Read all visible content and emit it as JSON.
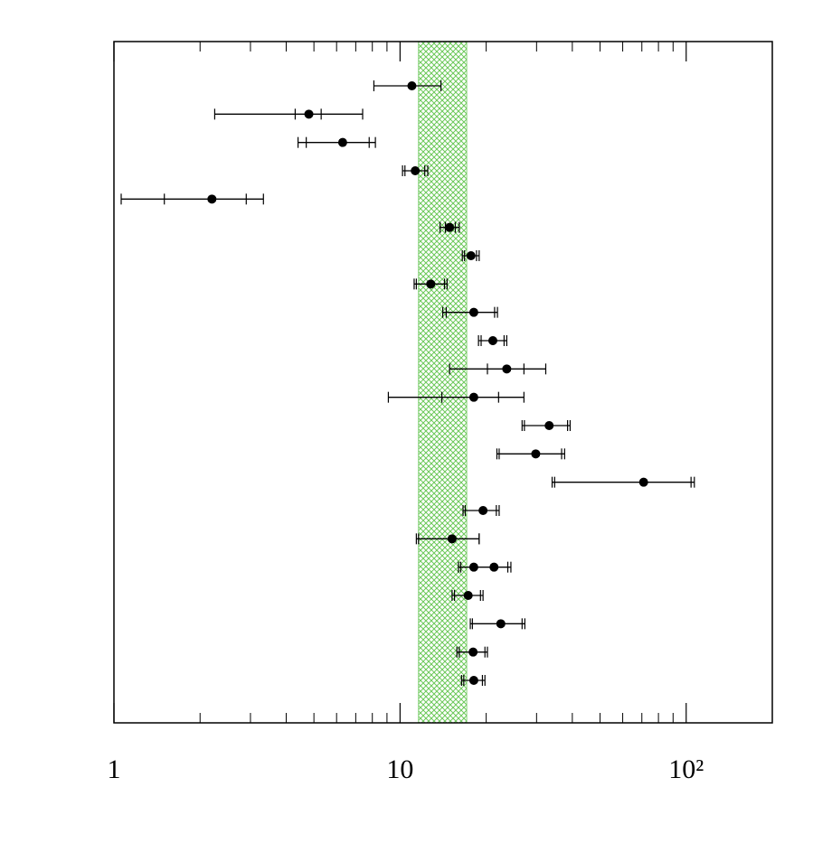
{
  "chart_data": {
    "type": "errorbar",
    "xscale": "log",
    "xlim": [
      1,
      200
    ],
    "xticks": [
      1,
      10,
      {
        "value": 100,
        "label": "10²"
      }
    ],
    "xminor_ticks": [
      2,
      3,
      4,
      5,
      6,
      7,
      8,
      9,
      20,
      30,
      40,
      50,
      60,
      70,
      80,
      90,
      200
    ],
    "band": {
      "range": [
        11.6,
        17.1
      ],
      "color": "#6cc85a"
    },
    "series": [
      {
        "color": "#000000",
        "values": [
          11.0,
          4.8,
          6.3,
          11.3,
          2.2,
          14.9,
          17.7,
          12.8,
          18.1,
          21.1,
          23.6,
          18.1,
          33.2,
          29.8,
          71.0,
          19.5,
          15.2,
          18.1,
          17.3,
          22.5,
          18.0,
          18.1
        ],
        "outer_low": [
          8.1,
          2.25,
          4.4,
          10.2,
          1.06,
          13.8,
          16.5,
          11.2,
          14.1,
          18.8,
          14.9,
          9.1,
          26.7,
          21.8,
          34.0,
          16.6,
          11.4,
          16.0,
          15.2,
          17.6,
          15.8,
          16.4
        ],
        "outer_high": [
          13.9,
          7.4,
          8.2,
          12.5,
          3.33,
          16.1,
          18.9,
          14.6,
          21.9,
          23.6,
          32.3,
          27.1,
          39.3,
          37.6,
          106.8,
          22.2,
          18.9,
          24.4,
          19.5,
          27.3,
          20.2,
          19.8
        ],
        "inner_low": [
          null,
          4.3,
          4.7,
          10.4,
          1.5,
          14.4,
          16.8,
          11.4,
          14.5,
          19.2,
          20.2,
          14.0,
          27.2,
          22.2,
          34.7,
          16.9,
          11.6,
          16.3,
          15.5,
          17.9,
          16.1,
          16.7
        ],
        "inner_high": [
          null,
          5.3,
          7.8,
          12.2,
          2.9,
          15.6,
          18.5,
          14.3,
          21.4,
          23.1,
          27.1,
          22.1,
          38.5,
          36.7,
          104,
          21.7,
          18.9,
          23.8,
          19.1,
          26.7,
          19.8,
          19.4
        ]
      },
      {
        "color": "#000000",
        "values": [
          null,
          null,
          null,
          null,
          null,
          null,
          null,
          null,
          null,
          null,
          null,
          null,
          null,
          null,
          null,
          null,
          null,
          21.3,
          null,
          null,
          null,
          null
        ]
      }
    ]
  }
}
